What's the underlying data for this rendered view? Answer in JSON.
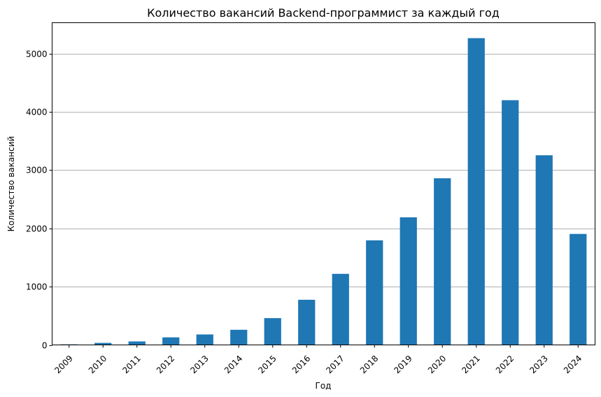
{
  "chart_data": {
    "type": "bar",
    "title": "Количество вакансий Backend-программист за каждый год",
    "xlabel": "Год",
    "ylabel": "Количество вакансий",
    "categories": [
      "2009",
      "2010",
      "2011",
      "2012",
      "2013",
      "2014",
      "2015",
      "2016",
      "2017",
      "2018",
      "2019",
      "2020",
      "2021",
      "2022",
      "2023",
      "2024"
    ],
    "values": [
      10,
      35,
      60,
      130,
      180,
      260,
      460,
      775,
      1220,
      1795,
      2190,
      2860,
      5265,
      4200,
      3255,
      1905
    ],
    "ylim": [
      0,
      5530
    ],
    "yticks": [
      0,
      1000,
      2000,
      3000,
      4000,
      5000
    ],
    "grid": "y-major",
    "legend": "none",
    "bar_color": "#1f77b4",
    "grid_color": "#b0b0b0"
  }
}
